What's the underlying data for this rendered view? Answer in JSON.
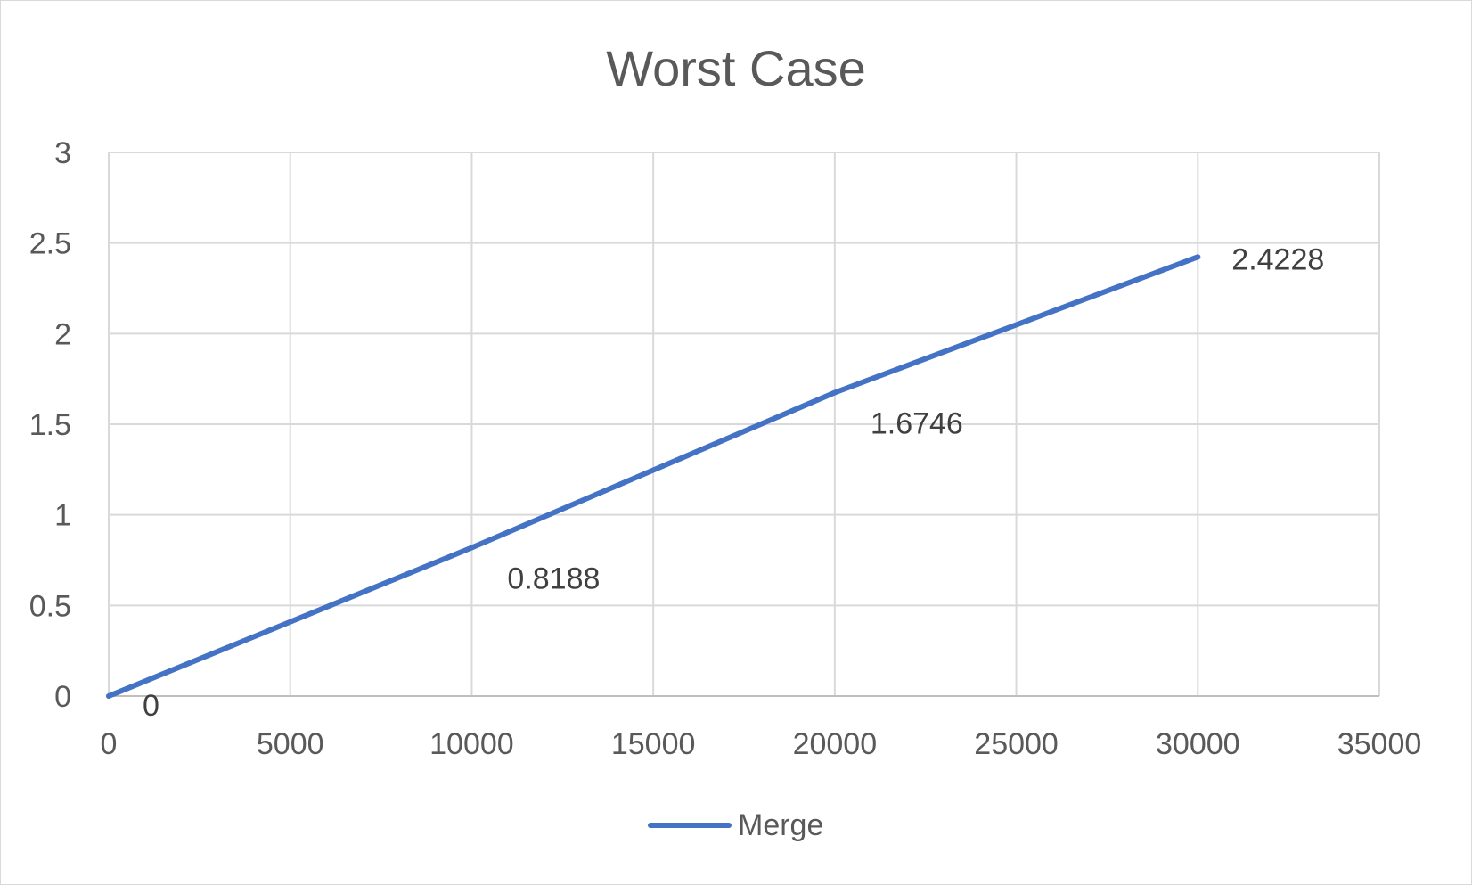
{
  "chart_data": {
    "type": "line",
    "title": "Worst Case",
    "xlabel": "",
    "ylabel": "",
    "xlim": [
      0,
      35000
    ],
    "ylim": [
      0,
      3
    ],
    "x_ticks": [
      0,
      5000,
      10000,
      15000,
      20000,
      25000,
      30000,
      35000
    ],
    "y_ticks": [
      0,
      0.5,
      1,
      1.5,
      2,
      2.5,
      3
    ],
    "x_tick_labels": [
      "0",
      "5000",
      "10000",
      "15000",
      "20000",
      "25000",
      "30000",
      "35000"
    ],
    "y_tick_labels": [
      "0",
      "0.5",
      "1",
      "1.5",
      "2",
      "2.5",
      "3"
    ],
    "grid": true,
    "legend_position": "bottom",
    "series": [
      {
        "name": "Merge",
        "color": "#4472c4",
        "x": [
          0,
          10000,
          20000,
          30000
        ],
        "values": [
          0,
          0.8188,
          1.6746,
          2.4228
        ],
        "data_labels": [
          "0",
          "0.8188",
          "1.6746",
          "2.4228"
        ]
      }
    ]
  }
}
